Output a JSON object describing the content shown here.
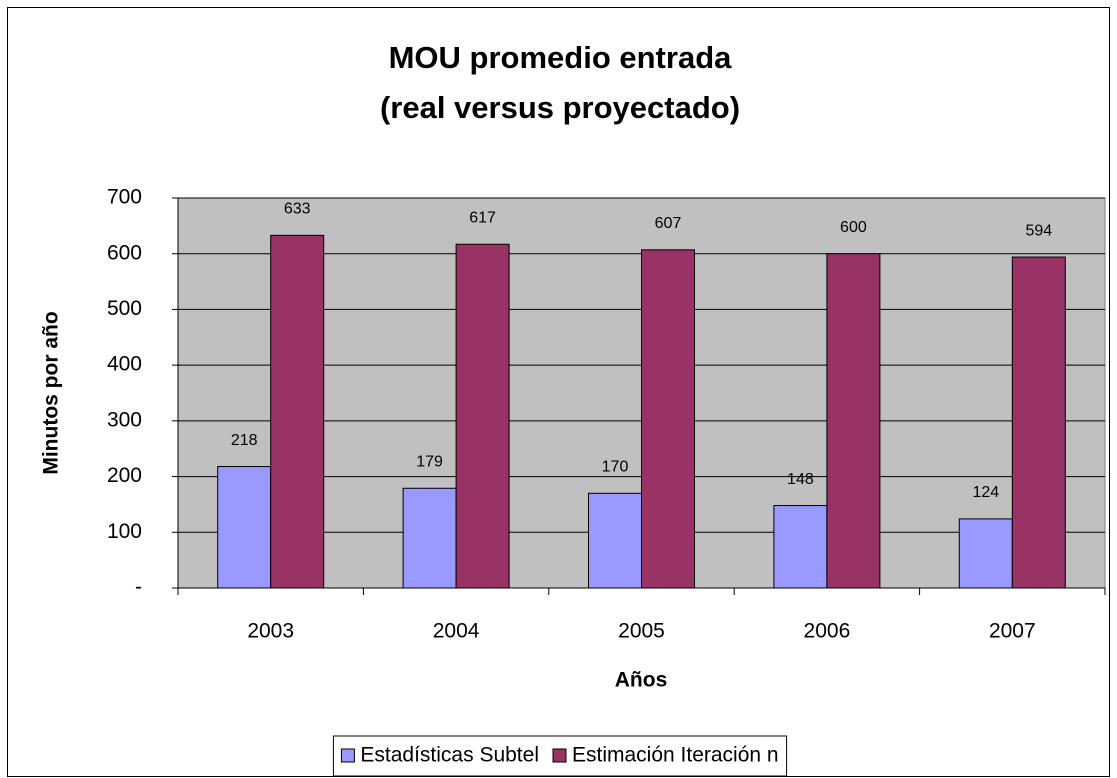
{
  "chart_data": {
    "type": "bar",
    "title": [
      "MOU promedio entrada",
      "(real versus proyectado)"
    ],
    "x_label": "Años",
    "y_label": "Minutos por año",
    "categories": [
      "2003",
      "2004",
      "2005",
      "2006",
      "2007"
    ],
    "series": [
      {
        "name": "Estadísticas Subtel",
        "color": "#9999ff",
        "values": [
          218,
          179,
          170,
          148,
          124
        ]
      },
      {
        "name": "Estimación Iteración n",
        "color": "#993366",
        "values": [
          633,
          617,
          607,
          600,
          594
        ]
      }
    ],
    "ylim": [
      0,
      700
    ],
    "yticks": [
      {
        "value": 0,
        "label": "-"
      },
      100,
      200,
      300,
      400,
      500,
      600,
      700
    ],
    "grid": true,
    "plot_background": "#c0c0c0",
    "legend": "bottom"
  }
}
